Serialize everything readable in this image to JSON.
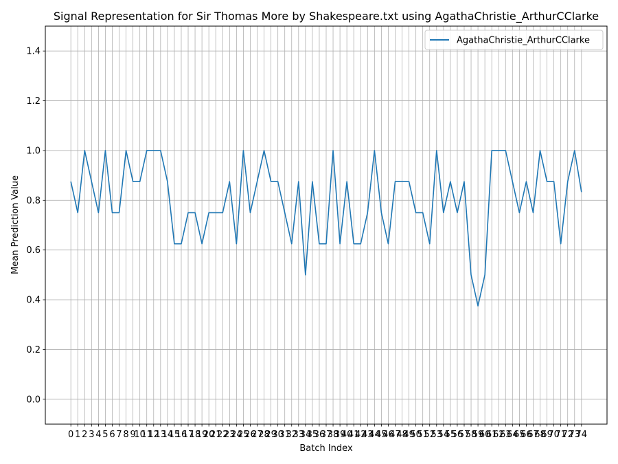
{
  "chart_data": {
    "type": "line",
    "title": "Signal Representation for Sir Thomas More by Shakespeare.txt using AgathaChristie_ArthurCClarke",
    "xlabel": "Batch Index",
    "ylabel": "Mean Prediction Value",
    "xlim": [
      -3.7,
      77.7
    ],
    "ylim": [
      -0.1,
      1.5
    ],
    "yticks": [
      0.0,
      0.2,
      0.4,
      0.6,
      0.8,
      1.0,
      1.2,
      1.4
    ],
    "grid": true,
    "legend": "upper right",
    "series": [
      {
        "name": "AgathaChristie_ArthurCClarke",
        "color": "#1f77b4",
        "x": [
          0,
          1,
          2,
          3,
          4,
          5,
          6,
          7,
          8,
          9,
          10,
          11,
          12,
          13,
          14,
          15,
          16,
          17,
          18,
          19,
          20,
          21,
          22,
          23,
          24,
          25,
          26,
          27,
          28,
          29,
          30,
          31,
          32,
          33,
          34,
          35,
          36,
          37,
          38,
          39,
          40,
          41,
          42,
          43,
          44,
          45,
          46,
          47,
          48,
          49,
          50,
          51,
          52,
          53,
          54,
          55,
          56,
          57,
          58,
          59,
          60,
          61,
          62,
          63,
          64,
          65,
          66,
          67,
          68,
          69,
          70,
          71,
          72,
          73,
          74
        ],
        "values": [
          0.875,
          0.75,
          1.0,
          0.875,
          0.75,
          1.0,
          0.75,
          0.75,
          1.0,
          0.875,
          0.875,
          1.0,
          1.0,
          1.0,
          0.875,
          0.625,
          0.625,
          0.75,
          0.75,
          0.625,
          0.75,
          0.75,
          0.75,
          0.875,
          0.625,
          1.0,
          0.75,
          0.875,
          1.0,
          0.875,
          0.875,
          0.75,
          0.625,
          0.875,
          0.5,
          0.875,
          0.625,
          0.625,
          1.0,
          0.625,
          0.875,
          0.625,
          0.625,
          0.75,
          1.0,
          0.75,
          0.625,
          0.875,
          0.875,
          0.875,
          0.75,
          0.75,
          0.625,
          1.0,
          0.75,
          0.875,
          0.75,
          0.875,
          0.5,
          0.375,
          0.5,
          1.0,
          1.0,
          1.0,
          0.875,
          0.75,
          0.875,
          0.75,
          1.0,
          0.875,
          0.875,
          0.625,
          0.875,
          1.0,
          0.833
        ]
      }
    ]
  }
}
